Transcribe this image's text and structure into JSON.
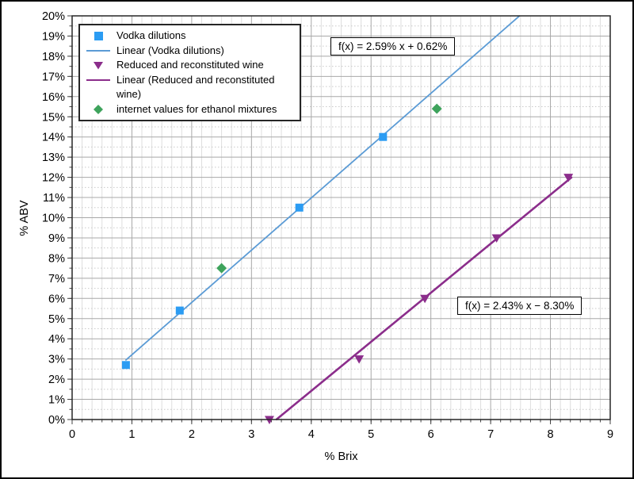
{
  "figure": {
    "background": "#ffffff",
    "frame_color": "#000000",
    "plot_border_color": "#262626",
    "major_grid_color": "#a8a8a8",
    "minor_grid_color": "#dedede",
    "minor_hgrid_color": "#c9c9c9",
    "tick_color": "#404040"
  },
  "chart_data": {
    "type": "scatter",
    "title": "",
    "xlabel": "% Brix",
    "ylabel": "% ABV",
    "xlim": [
      0,
      9
    ],
    "ylim": [
      0,
      20
    ],
    "x_major_step": 1,
    "y_major_step": 1,
    "x_minor_per_major": 6,
    "y_minor_per_major": 2,
    "grid": true,
    "legend_position": "top-left",
    "x_tick_labels": [
      "0",
      "1",
      "2",
      "3",
      "4",
      "5",
      "6",
      "7",
      "8",
      "9"
    ],
    "y_tick_labels": [
      "0%",
      "1%",
      "2%",
      "3%",
      "4%",
      "5%",
      "6%",
      "7%",
      "8%",
      "9%",
      "10%",
      "11%",
      "12%",
      "13%",
      "14%",
      "15%",
      "16%",
      "17%",
      "18%",
      "19%",
      "20%"
    ],
    "series": [
      {
        "name": "Vodka dilutions",
        "type": "scatter",
        "marker": "square",
        "color": "#2b9cf3",
        "points": [
          [
            0.9,
            2.7
          ],
          [
            1.8,
            5.4
          ],
          [
            3.8,
            10.5
          ],
          [
            5.2,
            14.0
          ]
        ]
      },
      {
        "name": "Linear (Vodka dilutions)",
        "type": "line",
        "color": "#5b9bd5",
        "width": 1.8,
        "slope": 2.59,
        "intercept": 0.62,
        "x_range": [
          0.9,
          7.48
        ],
        "equation": "f(x) = 2.59% x + 0.62%"
      },
      {
        "name": "Reduced and reconstituted wine",
        "type": "scatter",
        "marker": "triangle-down",
        "color": "#8b2d8b",
        "points": [
          [
            3.3,
            0.0
          ],
          [
            4.8,
            3.0
          ],
          [
            5.9,
            6.0
          ],
          [
            7.1,
            9.0
          ],
          [
            8.3,
            12.0
          ]
        ]
      },
      {
        "name": "Linear (Reduced and reconstituted wine)",
        "type": "line",
        "color": "#8b2d8b",
        "width": 2.6,
        "slope": 2.43,
        "intercept": -8.3,
        "x_range": [
          3.42,
          8.35
        ],
        "equation": "f(x) = 2.43% x − 8.30%"
      },
      {
        "name": "internet values for ethanol mixtures",
        "type": "scatter",
        "marker": "diamond",
        "color": "#3ea35c",
        "points": [
          [
            2.5,
            7.5
          ],
          [
            6.1,
            15.4
          ]
        ]
      }
    ]
  },
  "legend": {
    "items": [
      {
        "label": "Vodka dilutions",
        "marker": "square",
        "color": "#2b9cf3"
      },
      {
        "label": "Linear (Vodka dilutions)",
        "marker": "line",
        "color": "#5b9bd5"
      },
      {
        "label": "Reduced and reconstituted wine",
        "marker": "triangle-down",
        "color": "#8b2d8b"
      },
      {
        "label": "Linear (Reduced and reconstituted wine)",
        "marker": "line",
        "color": "#8b2d8b"
      },
      {
        "label": "internet values for ethanol mixtures",
        "marker": "diamond",
        "color": "#3ea35c"
      }
    ]
  }
}
